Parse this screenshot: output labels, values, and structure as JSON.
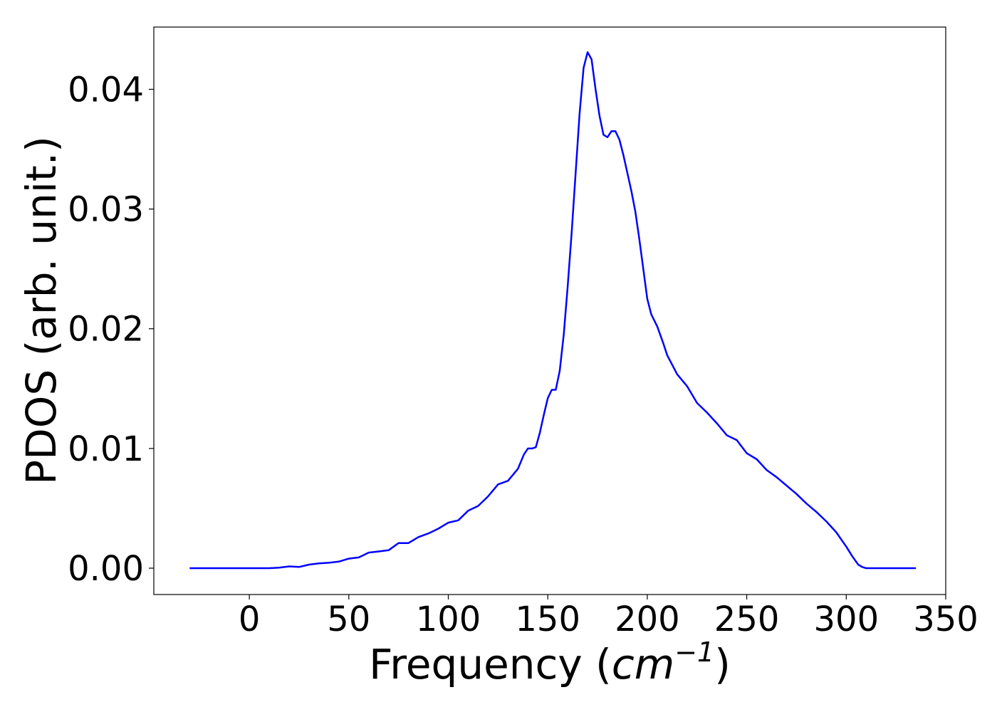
{
  "chart_data": {
    "type": "line",
    "title": "",
    "xlabel_main": "Frequency (",
    "xlabel_var": "cm",
    "xlabel_exp": "−1",
    "xlabel_close": ")",
    "ylabel": "PDOS (arb. unit.)",
    "xlim": [
      -48,
      350
    ],
    "ylim": [
      -0.0022,
      0.0452
    ],
    "xticks": [
      0,
      50,
      100,
      150,
      200,
      250,
      300,
      350
    ],
    "xtick_labels": [
      "0",
      "50",
      "100",
      "150",
      "200",
      "250",
      "300",
      "350"
    ],
    "yticks": [
      0.0,
      0.01,
      0.02,
      0.03,
      0.04
    ],
    "ytick_labels": [
      "0.00",
      "0.01",
      "0.02",
      "0.03",
      "0.04"
    ],
    "grid": false,
    "legend": "none",
    "series": [
      {
        "color": "#0000ff",
        "x": [
          -30,
          -20,
          -10,
          0,
          5,
          10,
          15,
          20,
          25,
          30,
          35,
          40,
          45,
          50,
          55,
          60,
          65,
          70,
          75,
          80,
          85,
          90,
          95,
          100,
          105,
          110,
          115,
          120,
          125,
          130,
          135,
          138,
          140,
          142,
          144,
          146,
          148,
          150,
          152,
          154,
          156,
          158,
          160,
          162,
          164,
          166,
          168,
          170,
          172,
          174,
          176,
          178,
          180,
          182,
          184,
          186,
          188,
          190,
          192,
          194,
          196,
          198,
          200,
          202,
          205,
          208,
          210,
          215,
          220,
          225,
          230,
          235,
          240,
          245,
          250,
          255,
          260,
          265,
          270,
          275,
          280,
          285,
          290,
          295,
          300,
          303,
          306,
          308,
          310,
          312,
          315,
          320,
          335
        ],
        "y": [
          0.0,
          0.0,
          0.0,
          0.0,
          0.0,
          0.0,
          5e-05,
          0.00015,
          0.0001,
          0.0003,
          0.0004,
          0.00045,
          0.00055,
          0.0008,
          0.0009,
          0.0013,
          0.0014,
          0.0015,
          0.0021,
          0.0021,
          0.0026,
          0.0029,
          0.0033,
          0.0038,
          0.004,
          0.0048,
          0.0052,
          0.006,
          0.007,
          0.0073,
          0.0083,
          0.0095,
          0.01,
          0.01,
          0.0101,
          0.0113,
          0.0128,
          0.0142,
          0.0149,
          0.0149,
          0.0165,
          0.0195,
          0.0235,
          0.028,
          0.033,
          0.038,
          0.0418,
          0.0431,
          0.0425,
          0.04,
          0.0378,
          0.0362,
          0.036,
          0.0365,
          0.0365,
          0.0358,
          0.0345,
          0.033,
          0.0315,
          0.0298,
          0.0275,
          0.025,
          0.0225,
          0.0212,
          0.0202,
          0.0188,
          0.0178,
          0.0162,
          0.0152,
          0.0138,
          0.013,
          0.0121,
          0.0111,
          0.0107,
          0.0096,
          0.0091,
          0.0082,
          0.0076,
          0.0069,
          0.0062,
          0.0054,
          0.0047,
          0.0039,
          0.003,
          0.0018,
          0.001,
          0.0003,
          0.0001,
          0.0,
          0.0,
          0.0,
          0.0,
          0.0
        ]
      }
    ]
  }
}
